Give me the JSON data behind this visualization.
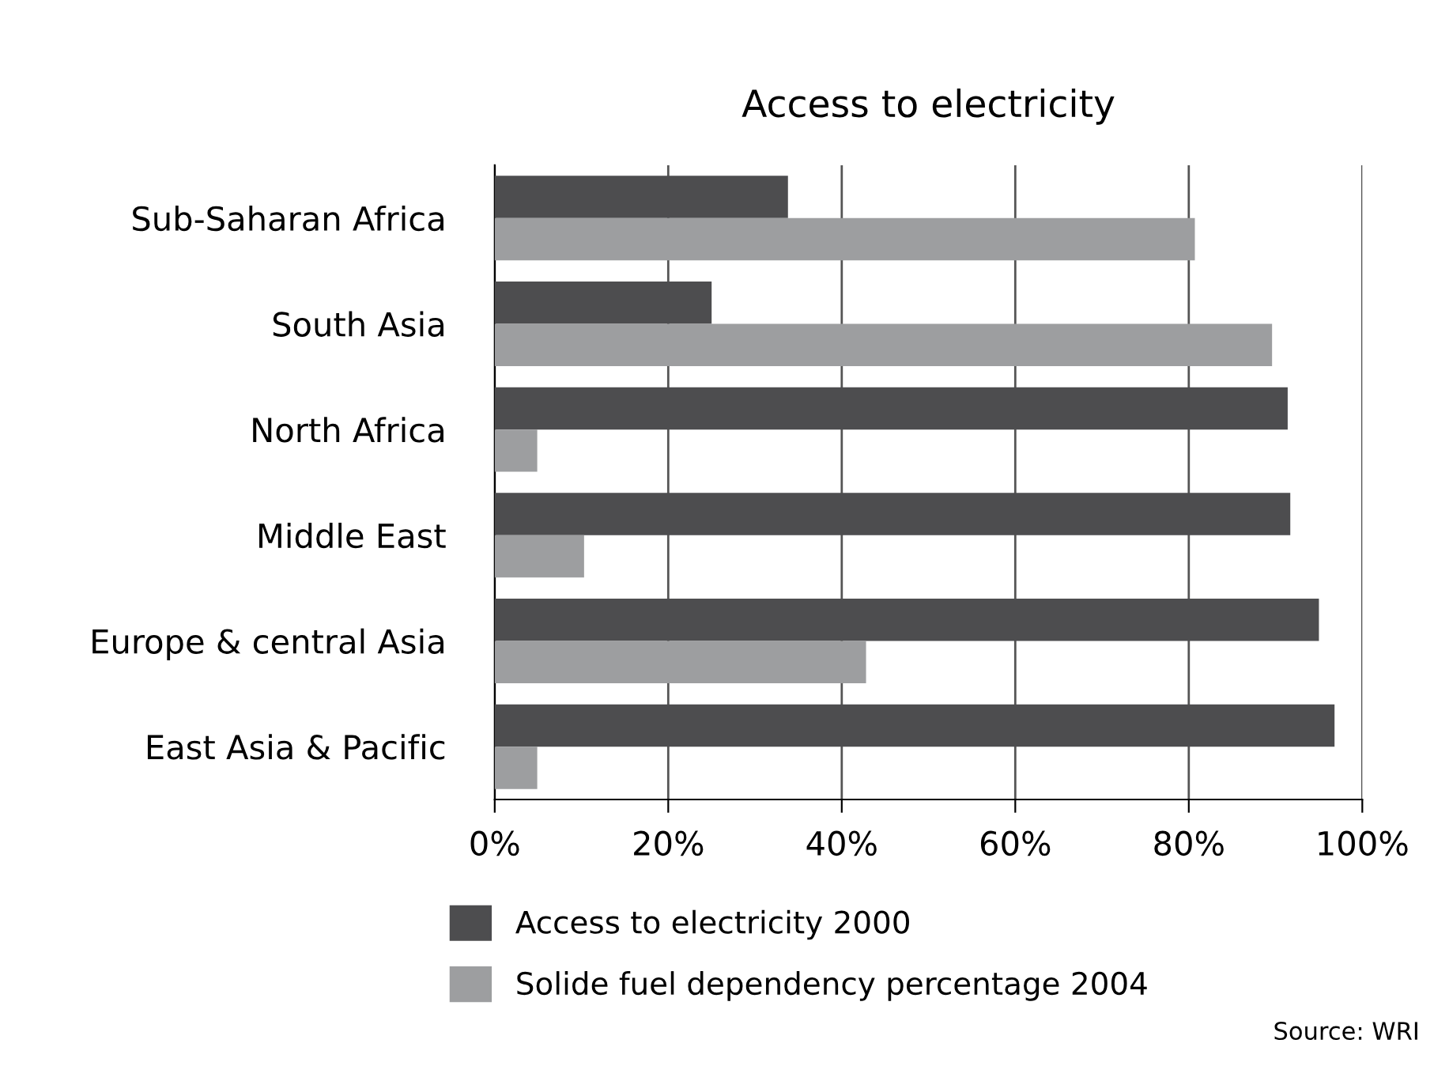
{
  "chart_data": {
    "type": "bar",
    "orientation": "horizontal",
    "title": "Access to electricity",
    "categories": [
      "Sub-Saharan Africa",
      "South Asia",
      "North Africa",
      "Middle East",
      "Europe & central Asia",
      "East Asia & Pacific"
    ],
    "series": [
      {
        "name": "Access to electricity 2000",
        "color": "#4d4d4f",
        "values": [
          33.8,
          25.0,
          91.4,
          91.7,
          95.0,
          96.8
        ]
      },
      {
        "name": "Solide fuel dependency percentage 2004",
        "color": "#9d9ea0",
        "values": [
          80.7,
          89.6,
          4.9,
          10.3,
          42.8,
          4.9
        ]
      }
    ],
    "xlim": [
      0,
      100
    ],
    "xticks": [
      {
        "value": 0,
        "label": "0%"
      },
      {
        "value": 20,
        "label": "20%"
      },
      {
        "value": 40,
        "label": "40%"
      },
      {
        "value": 60,
        "label": "60%"
      },
      {
        "value": 80,
        "label": "80%"
      },
      {
        "value": 100,
        "label": "100%"
      }
    ],
    "grid": "x",
    "legend": "bottom",
    "annotations": [
      "Source: WRI"
    ]
  }
}
